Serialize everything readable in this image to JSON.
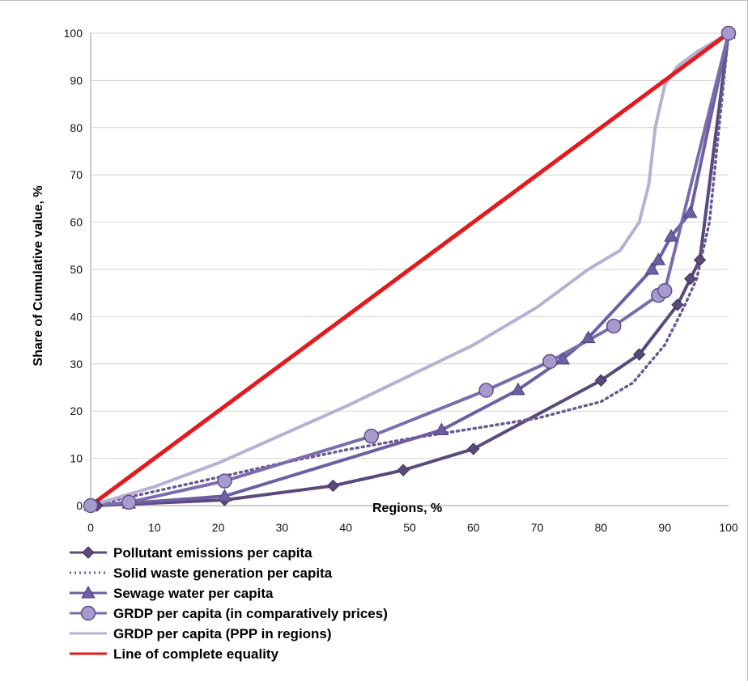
{
  "chart_data": {
    "type": "line",
    "title": "",
    "xlabel": "Regions, %",
    "ylabel": "Share of Cumulative value, %",
    "xlim": [
      0,
      100
    ],
    "ylim": [
      0,
      100
    ],
    "x_ticks": [
      "0",
      "10",
      "20",
      "30",
      "40",
      "50",
      "60",
      "70",
      "80",
      "90",
      "100"
    ],
    "y_ticks": [
      "0",
      "10",
      "20",
      "30",
      "40",
      "50",
      "60",
      "70",
      "80",
      "90",
      "100"
    ],
    "grid": "horizontal",
    "legend_position": "bottom-left",
    "series": [
      {
        "name": "Pollutant emissions per capita",
        "color": "#5a4a7c",
        "style": "solid",
        "marker": "diamond",
        "points": [
          [
            0,
            0
          ],
          [
            1,
            0
          ],
          [
            21,
            1.2
          ],
          [
            38,
            4.2
          ],
          [
            49,
            7.5
          ],
          [
            60,
            12
          ],
          [
            80,
            26.5
          ],
          [
            86,
            32
          ],
          [
            92,
            42.5
          ],
          [
            94,
            48
          ],
          [
            95.5,
            52
          ],
          [
            100,
            100
          ]
        ]
      },
      {
        "name": "Solid waste generation per capita",
        "color": "#6a5a94",
        "style": "dotted",
        "marker": "none",
        "points": [
          [
            0,
            0
          ],
          [
            10,
            3
          ],
          [
            20,
            6
          ],
          [
            30,
            9
          ],
          [
            40,
            11.8
          ],
          [
            50,
            14.2
          ],
          [
            60,
            16.3
          ],
          [
            70,
            18.5
          ],
          [
            80,
            22
          ],
          [
            85,
            26
          ],
          [
            90,
            34
          ],
          [
            93,
            42
          ],
          [
            95,
            48
          ],
          [
            97,
            60
          ],
          [
            100,
            100
          ]
        ]
      },
      {
        "name": "Sewage water per capita",
        "color": "#6e5ea2",
        "style": "solid",
        "marker": "triangle",
        "points": [
          [
            0,
            0
          ],
          [
            6,
            0.5
          ],
          [
            21,
            2
          ],
          [
            55,
            16
          ],
          [
            67,
            24.5
          ],
          [
            74,
            31
          ],
          [
            78,
            35.5
          ],
          [
            88,
            50
          ],
          [
            89,
            52
          ],
          [
            91,
            57
          ],
          [
            94,
            62
          ],
          [
            100,
            100
          ]
        ]
      },
      {
        "name": "GRDP per capita (in comparatively prices)",
        "color": "#7b6cae",
        "style": "solid",
        "marker": "circle",
        "points": [
          [
            0,
            0
          ],
          [
            6,
            0.7
          ],
          [
            21,
            5.2
          ],
          [
            44,
            14.7
          ],
          [
            62,
            24.4
          ],
          [
            72,
            30.5
          ],
          [
            82,
            38
          ],
          [
            89,
            44.5
          ],
          [
            90,
            45.5
          ],
          [
            100,
            100
          ]
        ]
      },
      {
        "name": "GRDP per capita (PPP in regions)",
        "color": "#b8b0d2",
        "style": "solid",
        "marker": "none",
        "points": [
          [
            0,
            0
          ],
          [
            10,
            4
          ],
          [
            20,
            9
          ],
          [
            30,
            15
          ],
          [
            40,
            21
          ],
          [
            50,
            27.5
          ],
          [
            60,
            34
          ],
          [
            70,
            42
          ],
          [
            78,
            50
          ],
          [
            83,
            54
          ],
          [
            86,
            60
          ],
          [
            87.5,
            68
          ],
          [
            88.5,
            80
          ],
          [
            90,
            89
          ],
          [
            92,
            93
          ],
          [
            95,
            96
          ],
          [
            100,
            100
          ]
        ]
      },
      {
        "name": "Line of complete equality",
        "color": "#e41a1c",
        "style": "solid",
        "marker": "none",
        "points": [
          [
            0,
            0
          ],
          [
            100,
            100
          ]
        ]
      }
    ]
  }
}
